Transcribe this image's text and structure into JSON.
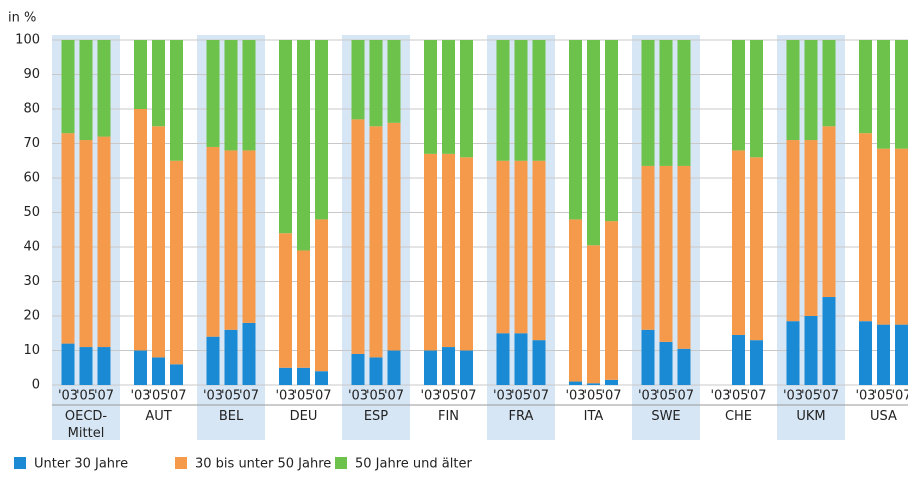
{
  "chart_data": {
    "type": "stacked_bar",
    "y_label": "in %",
    "groups": [
      "OECD-\nMittel",
      "AUT",
      "BEL",
      "DEU",
      "ESP",
      "FIN",
      "FRA",
      "ITA",
      "SWE",
      "CHE",
      "UKM",
      "USA"
    ],
    "categories": [
      "'03",
      "'05",
      "'07",
      "'03",
      "'05",
      "'07",
      "'03",
      "'05",
      "'07",
      "'03",
      "'05",
      "'07",
      "'03",
      "'05",
      "'07",
      "'03",
      "'05",
      "'07",
      "'03",
      "'05",
      "'07",
      "'03",
      "'05",
      "'07",
      "'03",
      "'05",
      "'07",
      "'03",
      "'05",
      "'07",
      "'03",
      "'05",
      "'07",
      "'03",
      "'05",
      "'07"
    ],
    "series": [
      {
        "name": "Unter 30 Jahre",
        "color": "#1a8ad4",
        "values": [
          12,
          11,
          11,
          10,
          8,
          6,
          14,
          16,
          18,
          5,
          5,
          4,
          9,
          8,
          10,
          10,
          11,
          10,
          15,
          15,
          13,
          1,
          0.5,
          1.5,
          16,
          12.5,
          10.5,
          null,
          14.5,
          13,
          18.5,
          20,
          25.5,
          18.5,
          17.5,
          17.5
        ]
      },
      {
        "name": "30 bis unter 50 Jahre",
        "color": "#f59a4b",
        "values": [
          61,
          60,
          61,
          70,
          67,
          59,
          55,
          52,
          50,
          39,
          34,
          44,
          68,
          67,
          66,
          57,
          56,
          56,
          50,
          50,
          52,
          47,
          40,
          46,
          47.5,
          51,
          53,
          null,
          53.5,
          53,
          52.5,
          51,
          49.5,
          54.5,
          51,
          51
        ]
      },
      {
        "name": "50 Jahre und älter",
        "color": "#6cc24a",
        "values": [
          27,
          29,
          28,
          20,
          25,
          35,
          31,
          32,
          32,
          56,
          61,
          52,
          23,
          25,
          24,
          33,
          33,
          34,
          35,
          35,
          35,
          52,
          59.5,
          52.5,
          36.5,
          36.5,
          36.5,
          null,
          32,
          34,
          29,
          29,
          25,
          27,
          31.5,
          31.5
        ]
      }
    ],
    "ylim": [
      0,
      100
    ],
    "yticks": [
      0,
      10,
      20,
      30,
      40,
      50,
      60,
      70,
      80,
      90,
      100
    ],
    "grid": true
  }
}
